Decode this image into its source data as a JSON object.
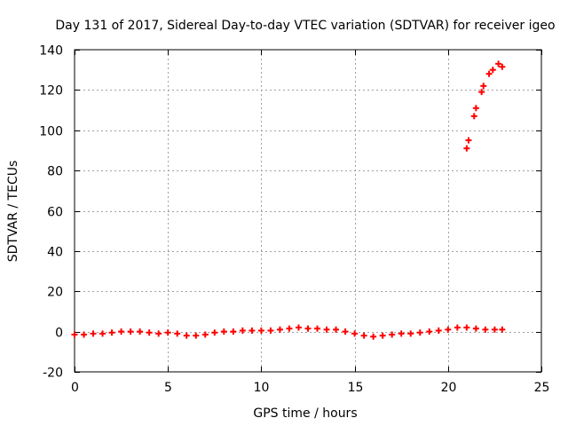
{
  "chart_data": {
    "type": "scatter",
    "title": "Day 131 of 2017, Sidereal Day-to-day VTEC variation (SDTVAR) for receiver igeo",
    "xlabel": "GPS time / hours",
    "ylabel": "SDTVAR / TECUs",
    "xlim": [
      0,
      25
    ],
    "ylim": [
      -20,
      140
    ],
    "xticks": [
      "0",
      "5",
      "10",
      "15",
      "20",
      "25"
    ],
    "yticks": [
      "-20",
      "0",
      "20",
      "40",
      "60",
      "80",
      "100",
      "120",
      "140"
    ],
    "grid": true,
    "marker": "plus",
    "series": [
      {
        "name": "SDTVAR",
        "color": "#ff0000",
        "x": [
          0.0,
          0.5,
          1.0,
          1.5,
          2.0,
          2.5,
          3.0,
          3.5,
          4.0,
          4.5,
          5.0,
          5.5,
          6.0,
          6.5,
          7.0,
          7.5,
          8.0,
          8.5,
          9.0,
          9.5,
          10.0,
          10.5,
          11.0,
          11.5,
          12.0,
          12.5,
          13.0,
          13.5,
          14.0,
          14.5,
          15.0,
          15.5,
          16.0,
          16.5,
          17.0,
          17.5,
          18.0,
          18.5,
          19.0,
          19.5,
          20.0,
          20.5,
          21.0,
          21.5,
          22.0,
          22.5,
          22.9,
          21.0,
          21.1,
          21.4,
          21.5,
          21.8,
          21.9,
          22.2,
          22.4,
          22.7,
          22.9
        ],
        "y": [
          -1.5,
          -1.5,
          -1.0,
          -1.0,
          -0.5,
          0.0,
          0.0,
          0.0,
          -0.5,
          -1.0,
          -0.5,
          -1.0,
          -2.0,
          -2.0,
          -1.5,
          -0.5,
          0.0,
          0.0,
          0.5,
          0.5,
          0.5,
          0.5,
          1.0,
          1.5,
          2.0,
          1.5,
          1.5,
          1.0,
          1.0,
          0.0,
          -1.0,
          -2.0,
          -2.5,
          -2.0,
          -1.5,
          -1.0,
          -1.0,
          -0.5,
          0.0,
          0.5,
          1.0,
          2.0,
          2.0,
          1.5,
          1.0,
          1.0,
          1.0,
          91.0,
          95.0,
          107.0,
          111.0,
          119.0,
          122.0,
          128.0,
          130.0,
          133.0,
          131.5
        ]
      }
    ]
  }
}
